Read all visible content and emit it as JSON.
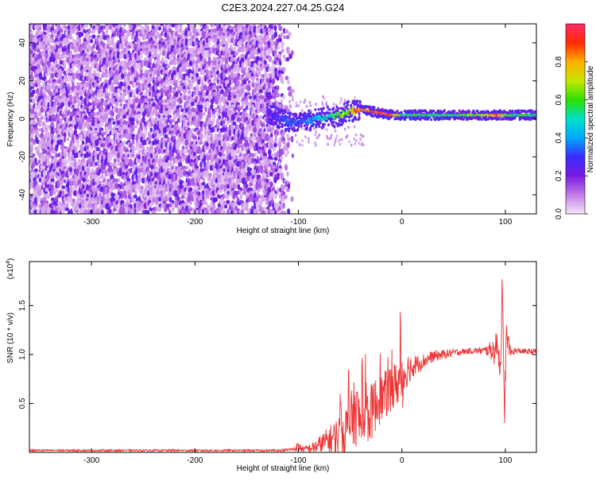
{
  "title": "C2E3.2024.227.04.25.G24",
  "chart_data": [
    {
      "type": "heatmap",
      "xlabel": "Height of straight line (km)",
      "ylabel": "Frequency (Hz)",
      "xlim": [
        -360,
        130
      ],
      "ylim": [
        -50,
        50
      ],
      "x_ticks": [
        -300,
        -200,
        -100,
        0,
        100
      ],
      "x_tick_labels": [
        "-300",
        "-200",
        "-100",
        "0",
        "100"
      ],
      "y_ticks": [
        -40,
        -20,
        0,
        20,
        40
      ],
      "y_tick_labels": [
        "-40",
        "-20",
        "0",
        "20",
        "40"
      ],
      "colorbar": {
        "label": "Normalized spectral amplitude",
        "range": [
          0,
          1
        ],
        "ticks": [
          0.0,
          0.2,
          0.4,
          0.6,
          0.8
        ],
        "tick_labels": [
          "0.0",
          "0.2",
          "0.4",
          "0.6",
          "0.8"
        ],
        "colors": [
          "#f3e6f8",
          "#c27ce6",
          "#7a1be0",
          "#3a2cff",
          "#00a8ff",
          "#00e0c8",
          "#2be000",
          "#c8e600",
          "#ffb000",
          "#ff2a00",
          "#ff2a6a"
        ]
      },
      "noise_region": {
        "x_range": [
          -360,
          -105
        ],
        "y_range": [
          -50,
          50
        ],
        "typical_amplitude": 0.15
      },
      "signal_track": {
        "x": [
          -130,
          -120,
          -110,
          -100,
          -90,
          -80,
          -70,
          -60,
          -50,
          -40,
          -30,
          -20,
          -10,
          0,
          20,
          40,
          60,
          80,
          90,
          100,
          130
        ],
        "frequency": [
          3,
          1,
          -1,
          -2,
          -1,
          0,
          1,
          2,
          4,
          5,
          4,
          3,
          2,
          2,
          2,
          2,
          2,
          2,
          2,
          2,
          2
        ],
        "amplitude": [
          0.2,
          0.3,
          0.35,
          0.3,
          0.4,
          0.45,
          0.5,
          0.6,
          0.7,
          0.9,
          0.85,
          0.9,
          0.9,
          0.55,
          0.55,
          0.55,
          0.6,
          0.7,
          0.85,
          0.6,
          0.55
        ]
      }
    },
    {
      "type": "line",
      "xlabel": "Height of straight line (km)",
      "ylabel": "SNR (10 * v/v)",
      "scale_label": "(x10",
      "scale_exponent": "4",
      "scale_suffix": ")",
      "xlim": [
        -360,
        130
      ],
      "ylim": [
        0,
        1.95
      ],
      "x_ticks": [
        -300,
        -200,
        -100,
        0,
        100
      ],
      "x_tick_labels": [
        "-300",
        "-200",
        "-100",
        "0",
        "100"
      ],
      "y_ticks": [
        0.5,
        1.0,
        1.5
      ],
      "y_tick_labels": [
        "0.5",
        "1.0",
        "1.5"
      ],
      "series": [
        {
          "color": "#ee3333",
          "x": [
            -360,
            -300,
            -200,
            -120,
            -105,
            -100,
            -95,
            -85,
            -75,
            -65,
            -55,
            -50,
            -45,
            -40,
            -35,
            -30,
            -25,
            -20,
            -15,
            -10,
            -5,
            0,
            5,
            10,
            20,
            30,
            40,
            50,
            60,
            70,
            80,
            85,
            90,
            93,
            95,
            97,
            99,
            101,
            105,
            110,
            120,
            130
          ],
          "y": [
            0.02,
            0.02,
            0.02,
            0.02,
            0.03,
            0.06,
            0.03,
            0.05,
            0.1,
            0.15,
            0.22,
            0.3,
            0.42,
            0.3,
            0.35,
            0.4,
            0.5,
            0.55,
            0.6,
            0.65,
            0.7,
            0.75,
            0.85,
            0.88,
            0.93,
            0.98,
            1.0,
            1.02,
            1.03,
            1.04,
            1.04,
            1.05,
            1.03,
            1.15,
            0.8,
            1.7,
            0.35,
            1.2,
            1.02,
            1.04,
            1.03,
            1.03
          ],
          "noise_envelope": [
            0.01,
            0.01,
            0.01,
            0.01,
            0.02,
            0.05,
            0.03,
            0.06,
            0.12,
            0.18,
            0.25,
            0.3,
            0.35,
            0.3,
            0.3,
            0.3,
            0.28,
            0.25,
            0.25,
            0.28,
            0.22,
            0.35,
            0.18,
            0.12,
            0.08,
            0.06,
            0.05,
            0.04,
            0.03,
            0.03,
            0.04,
            0.08,
            0.15,
            0.2,
            0.25,
            0.2,
            0.2,
            0.15,
            0.05,
            0.03,
            0.03,
            0.03
          ]
        }
      ]
    }
  ]
}
